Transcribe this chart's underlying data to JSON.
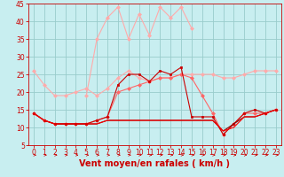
{
  "bg_color": "#c8eef0",
  "grid_color": "#99cccc",
  "xlabel": "Vent moyen/en rafales ( km/h )",
  "ylim": [
    5,
    45
  ],
  "xlim": [
    -0.5,
    23.5
  ],
  "yticks": [
    5,
    10,
    15,
    20,
    25,
    30,
    35,
    40,
    45
  ],
  "xticks": [
    0,
    1,
    2,
    3,
    4,
    5,
    6,
    7,
    8,
    9,
    10,
    11,
    12,
    13,
    14,
    15,
    16,
    17,
    18,
    19,
    20,
    21,
    22,
    23
  ],
  "lines": [
    {
      "x": [
        0,
        1,
        2,
        3,
        4,
        5,
        6,
        7,
        8,
        9,
        10,
        11,
        12,
        13,
        14,
        15,
        16,
        17,
        18,
        19,
        20,
        21,
        22,
        23
      ],
      "y": [
        26,
        22,
        19,
        19,
        20,
        21,
        19,
        21,
        24,
        26,
        24,
        23,
        24,
        24,
        25,
        25,
        25,
        25,
        24,
        24,
        25,
        26,
        26,
        26
      ],
      "color": "#ffaaaa",
      "marker": "D",
      "markersize": 2,
      "linewidth": 0.8,
      "zorder": 2
    },
    {
      "x": [
        5,
        6,
        7,
        8,
        9,
        10,
        11,
        12,
        13,
        14,
        15
      ],
      "y": [
        19,
        35,
        41,
        44,
        35,
        42,
        36,
        44,
        41,
        44,
        38
      ],
      "color": "#ffaaaa",
      "marker": "D",
      "markersize": 2,
      "linewidth": 0.8,
      "zorder": 2
    },
    {
      "x": [
        0,
        1,
        2,
        3,
        4,
        5,
        6,
        7,
        8,
        9,
        10,
        11,
        12,
        13,
        14,
        15,
        16,
        17,
        18,
        19,
        20,
        21,
        22,
        23
      ],
      "y": [
        14,
        12,
        11,
        11,
        11,
        11,
        12,
        13,
        20,
        21,
        22,
        23,
        24,
        24,
        25,
        24,
        19,
        14,
        8,
        11,
        14,
        14,
        14,
        15
      ],
      "color": "#ff6666",
      "marker": "D",
      "markersize": 2,
      "linewidth": 0.8,
      "zorder": 2
    },
    {
      "x": [
        0,
        1,
        2,
        3,
        4,
        5,
        6,
        7,
        8,
        9,
        10,
        11,
        12,
        13,
        14,
        15,
        16,
        17,
        18,
        19,
        20,
        21,
        22,
        23
      ],
      "y": [
        14,
        12,
        11,
        11,
        11,
        11,
        12,
        13,
        22,
        25,
        25,
        23,
        26,
        25,
        27,
        13,
        13,
        13,
        8,
        11,
        14,
        15,
        14,
        15
      ],
      "color": "#cc0000",
      "marker": "s",
      "markersize": 2,
      "linewidth": 0.8,
      "zorder": 3
    },
    {
      "x": [
        0,
        1,
        2,
        3,
        4,
        5,
        6,
        7,
        8,
        9,
        10,
        11,
        12,
        13,
        14,
        15,
        16,
        17,
        18,
        19,
        20,
        21,
        22,
        23
      ],
      "y": [
        14,
        12,
        11,
        11,
        11,
        11,
        11,
        12,
        12,
        12,
        12,
        12,
        12,
        12,
        12,
        12,
        12,
        12,
        9,
        11,
        13,
        13,
        14,
        15
      ],
      "color": "#880000",
      "marker": null,
      "markersize": 1,
      "linewidth": 0.8,
      "zorder": 3
    },
    {
      "x": [
        0,
        1,
        2,
        3,
        4,
        5,
        6,
        7,
        8,
        9,
        10,
        11,
        12,
        13,
        14,
        15,
        16,
        17,
        18,
        19,
        20,
        21,
        22,
        23
      ],
      "y": [
        14,
        12,
        11,
        11,
        11,
        11,
        11,
        12,
        12,
        12,
        12,
        12,
        12,
        12,
        12,
        12,
        12,
        12,
        9,
        10,
        13,
        13,
        14,
        15
      ],
      "color": "#ff0000",
      "marker": null,
      "markersize": 1,
      "linewidth": 0.8,
      "zorder": 3
    }
  ],
  "arrow_color": "#cc0000",
  "xlabel_color": "#cc0000",
  "xlabel_fontsize": 7,
  "tick_fontsize": 5.5,
  "tick_color": "#cc0000",
  "spine_color": "#cc0000"
}
